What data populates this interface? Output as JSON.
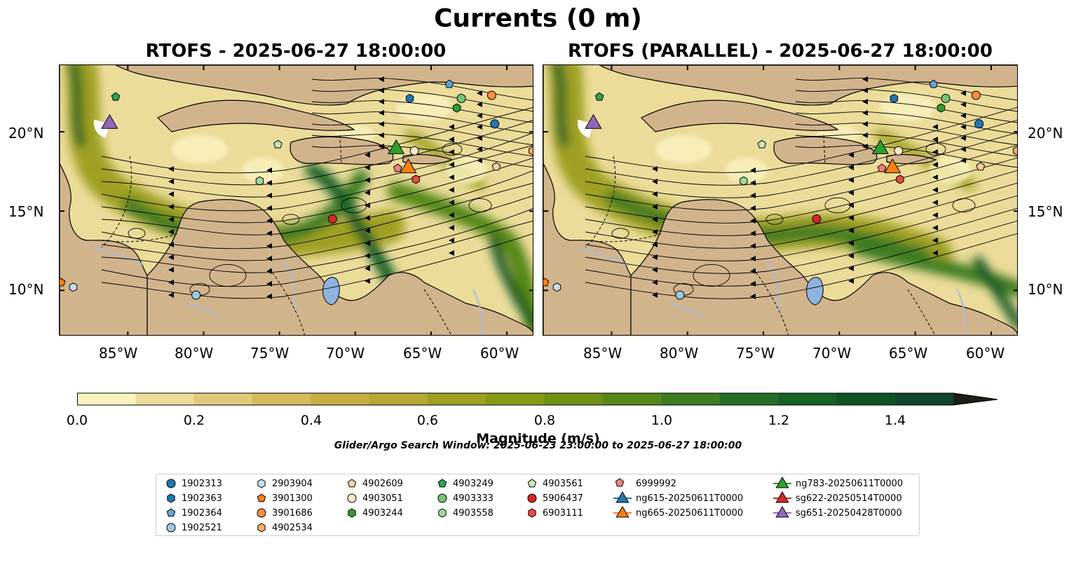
{
  "title": "Currents (0 m)",
  "maps": [
    {
      "title": "RTOFS - 2025-06-27 18:00:00"
    },
    {
      "title": "RTOFS (PARALLEL) - 2025-06-27 18:00:00"
    }
  ],
  "lat_labels": [
    "20°N",
    "15°N",
    "10°N"
  ],
  "lat_values": [
    20,
    15,
    10
  ],
  "lon_labels": [
    "85°W",
    "80°W",
    "75°W",
    "70°W",
    "65°W",
    "60°W"
  ],
  "lon_values": [
    -85,
    -80,
    -75,
    -70,
    -65,
    -60
  ],
  "extent": {
    "lon_min": -89.5,
    "lon_max": -58.2,
    "lat_min": 7.1,
    "lat_max": 24.2
  },
  "colorbar": {
    "label": "Magnitude (m/s)",
    "tick_labels": [
      "0.0",
      "0.2",
      "0.4",
      "0.6",
      "0.8",
      "1.0",
      "1.2",
      "1.4"
    ],
    "ticks": [
      0.0,
      0.2,
      0.4,
      0.6,
      0.8,
      1.0,
      1.2,
      1.4
    ],
    "min": 0.0,
    "max": 1.5,
    "extend": "max",
    "colors": [
      "#faf3c0",
      "#ecdc9a",
      "#e0ca7a",
      "#d3bb5c",
      "#c7af45",
      "#b7a733",
      "#9fa020",
      "#869a14",
      "#6e9113",
      "#558719",
      "#3e7c22",
      "#276f27",
      "#166126",
      "#0e5324",
      "#11452b",
      "#1a3826",
      "#1d2c1d",
      "#1a1e14"
    ]
  },
  "search_window": "Glider/Argo Search Window: 2025-06-23 23:00:00 to 2025-06-27 18:00:00",
  "colors": {
    "land": "#d2b48c",
    "lake": "#8fb3df",
    "river": "#a9bdd8"
  },
  "legend": [
    {
      "label": "1902313",
      "color": "#1f77b4",
      "shape": "circle"
    },
    {
      "label": "1902363",
      "color": "#1f77b4",
      "shape": "hexagon"
    },
    {
      "label": "1902364",
      "color": "#5da5da",
      "shape": "pentagon"
    },
    {
      "label": "1902521",
      "color": "#9ecae1",
      "shape": "circle"
    },
    {
      "label": "2903904",
      "color": "#c6dbef",
      "shape": "hexagon"
    },
    {
      "label": "3901300",
      "color": "#ff7f0e",
      "shape": "pentagon"
    },
    {
      "label": "3901686",
      "color": "#fd8d3c",
      "shape": "circle"
    },
    {
      "label": "4902534",
      "color": "#fdae6b",
      "shape": "hexagon"
    },
    {
      "label": "4902609",
      "color": "#fdd0a2",
      "shape": "pentagon"
    },
    {
      "label": "4903051",
      "color": "#fee6ce",
      "shape": "circle"
    },
    {
      "label": "4903244",
      "color": "#2ca02c",
      "shape": "hexagon"
    },
    {
      "label": "4903249",
      "color": "#31a354",
      "shape": "pentagon"
    },
    {
      "label": "4903333",
      "color": "#74c476",
      "shape": "circle"
    },
    {
      "label": "4903558",
      "color": "#a1d99b",
      "shape": "hexagon"
    },
    {
      "label": "4903561",
      "color": "#c7e9c0",
      "shape": "pentagon"
    },
    {
      "label": "5906437",
      "color": "#d62728",
      "shape": "circle"
    },
    {
      "label": "6903111",
      "color": "#e74c3c",
      "shape": "hexagon"
    },
    {
      "label": "6999992",
      "color": "#f08080",
      "shape": "pentagon"
    },
    {
      "label": "ng615-20250611T0000",
      "color": "#1f77b4",
      "shape": "triangle"
    },
    {
      "label": "ng665-20250611T0000",
      "color": "#ff7f0e",
      "shape": "triangle"
    },
    {
      "label": "ng783-20250611T0000",
      "color": "#2ca02c",
      "shape": "triangle"
    },
    {
      "label": "sg622-20250514T0000",
      "color": "#d62728",
      "shape": "triangle"
    },
    {
      "label": "sg651-20250428T0000",
      "color": "#9467bd",
      "shape": "triangle"
    }
  ],
  "markers": [
    {
      "id": "1902313",
      "lon": -60.8,
      "lat": 20.5
    },
    {
      "id": "1902363",
      "lon": -66.4,
      "lat": 22.1
    },
    {
      "id": "1902364",
      "lon": -63.8,
      "lat": 23.0
    },
    {
      "id": "1902521",
      "lon": -80.5,
      "lat": 9.7
    },
    {
      "id": "2903904",
      "lon": -88.6,
      "lat": 10.2
    },
    {
      "id": "3901300",
      "lon": -89.4,
      "lat": 10.5
    },
    {
      "id": "3901686",
      "lon": -61.0,
      "lat": 22.3
    },
    {
      "id": "4902534",
      "lon": -58.3,
      "lat": 18.8
    },
    {
      "id": "4902609",
      "lon": -60.7,
      "lat": 17.8
    },
    {
      "id": "4903051",
      "lon": -66.1,
      "lat": 18.8
    },
    {
      "id": "4903244",
      "lon": -63.3,
      "lat": 21.5
    },
    {
      "id": "4903249",
      "lon": -85.8,
      "lat": 22.2
    },
    {
      "id": "4903333",
      "lon": -63.0,
      "lat": 22.1
    },
    {
      "id": "4903558",
      "lon": -76.3,
      "lat": 16.9
    },
    {
      "id": "4903561",
      "lon": -75.1,
      "lat": 19.2
    },
    {
      "id": "5906437",
      "lon": -71.5,
      "lat": 14.5
    },
    {
      "id": "6903111",
      "lon": -66.0,
      "lat": 17.0
    },
    {
      "id": "6999992",
      "lon": -67.2,
      "lat": 17.7
    },
    {
      "id": "ng665-20250611T0000",
      "lon": -66.5,
      "lat": 17.7
    },
    {
      "id": "ng783-20250611T0000",
      "lon": -67.3,
      "lat": 18.9
    },
    {
      "id": "sg651-20250428T0000",
      "lon": -86.2,
      "lat": 20.5
    }
  ]
}
